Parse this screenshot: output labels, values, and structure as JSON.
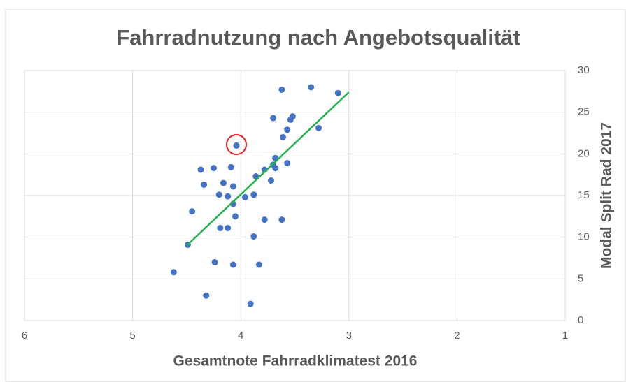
{
  "chart_data": {
    "type": "scatter",
    "title": "Fahrradnutzung nach Angebotsqualität",
    "x_label": "Gesamtnote Fahrradklimatest 2016",
    "y_label": "Modal Split Rad 2017",
    "xlim": [
      6,
      1
    ],
    "xticks": [
      6,
      5,
      4,
      3,
      2,
      1
    ],
    "ylim": [
      0,
      30
    ],
    "yticks": [
      0,
      5,
      10,
      15,
      20,
      25,
      30
    ],
    "grid": true,
    "color": "#4472c4",
    "x": [
      3.62,
      3.35,
      3.1,
      3.52,
      3.54,
      3.7,
      3.28,
      3.57,
      3.61,
      4.04,
      3.68,
      3.57,
      3.7,
      3.68,
      3.78,
      4.09,
      4.25,
      4.37,
      3.86,
      3.72,
      4.16,
      4.34,
      4.07,
      4.2,
      4.12,
      3.88,
      3.96,
      4.07,
      4.45,
      4.05,
      3.78,
      3.62,
      4.19,
      4.12,
      3.88,
      4.49,
      4.62,
      4.24,
      4.07,
      3.83,
      4.32,
      3.91
    ],
    "values": [
      27.7,
      28.0,
      27.3,
      24.5,
      24.1,
      24.3,
      23.1,
      22.9,
      22.0,
      21.0,
      19.5,
      18.9,
      18.7,
      18.3,
      18.1,
      18.4,
      18.3,
      18.1,
      17.3,
      16.8,
      16.5,
      16.3,
      16.1,
      15.1,
      14.9,
      15.1,
      14.8,
      14.0,
      13.1,
      12.5,
      12.1,
      12.1,
      11.1,
      11.1,
      10.1,
      9.1,
      5.8,
      7.0,
      6.7,
      6.7,
      3.0,
      2.0
    ],
    "trendline": {
      "color": "#22b14c",
      "x": [
        4.5,
        3.0
      ],
      "values": [
        9.0,
        27.4
      ]
    }
  }
}
